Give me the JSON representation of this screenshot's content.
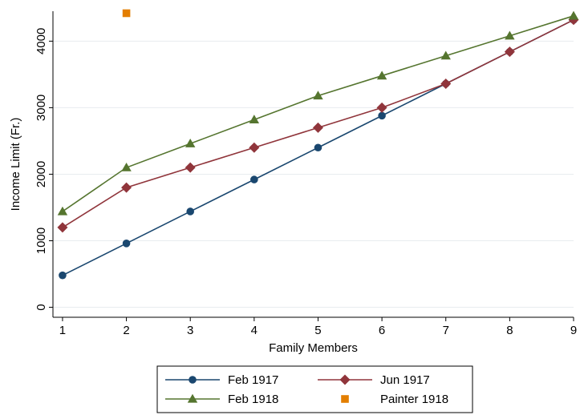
{
  "chart_data": {
    "type": "line",
    "title": "",
    "xlabel": "Family Members",
    "ylabel": "Income Limit (Fr.)",
    "xlim": [
      0.85,
      9.0
    ],
    "ylim": [
      -150,
      4450
    ],
    "xticks": [
      1,
      2,
      3,
      4,
      5,
      6,
      7,
      8,
      9
    ],
    "yticks": [
      0,
      1000,
      2000,
      3000,
      4000
    ],
    "grid": "horizontal",
    "legend_position": "bottom",
    "series": [
      {
        "name": "Feb 1917",
        "color": "#1a476f",
        "marker": "circle",
        "line": true,
        "x": [
          1,
          2,
          3,
          4,
          5,
          6,
          7,
          8,
          9
        ],
        "y": [
          480,
          960,
          1440,
          1920,
          2400,
          2880,
          3360,
          3840,
          4320
        ]
      },
      {
        "name": "Jun 1917",
        "color": "#90353b",
        "marker": "diamond",
        "line": true,
        "x": [
          1,
          2,
          3,
          4,
          5,
          6,
          7,
          8,
          9
        ],
        "y": [
          1200,
          1800,
          2100,
          2400,
          2700,
          3000,
          3360,
          3840,
          4320
        ]
      },
      {
        "name": "Feb 1918",
        "color": "#55752f",
        "marker": "triangle",
        "line": true,
        "x": [
          1,
          2,
          3,
          4,
          5,
          6,
          7,
          8,
          9
        ],
        "y": [
          1440,
          2100,
          2460,
          2820,
          3180,
          3480,
          3780,
          4080,
          4380
        ]
      },
      {
        "name": "Painter 1918",
        "color": "#e37e00",
        "marker": "square",
        "line": false,
        "x": [
          2
        ],
        "y": [
          4420
        ]
      }
    ]
  }
}
